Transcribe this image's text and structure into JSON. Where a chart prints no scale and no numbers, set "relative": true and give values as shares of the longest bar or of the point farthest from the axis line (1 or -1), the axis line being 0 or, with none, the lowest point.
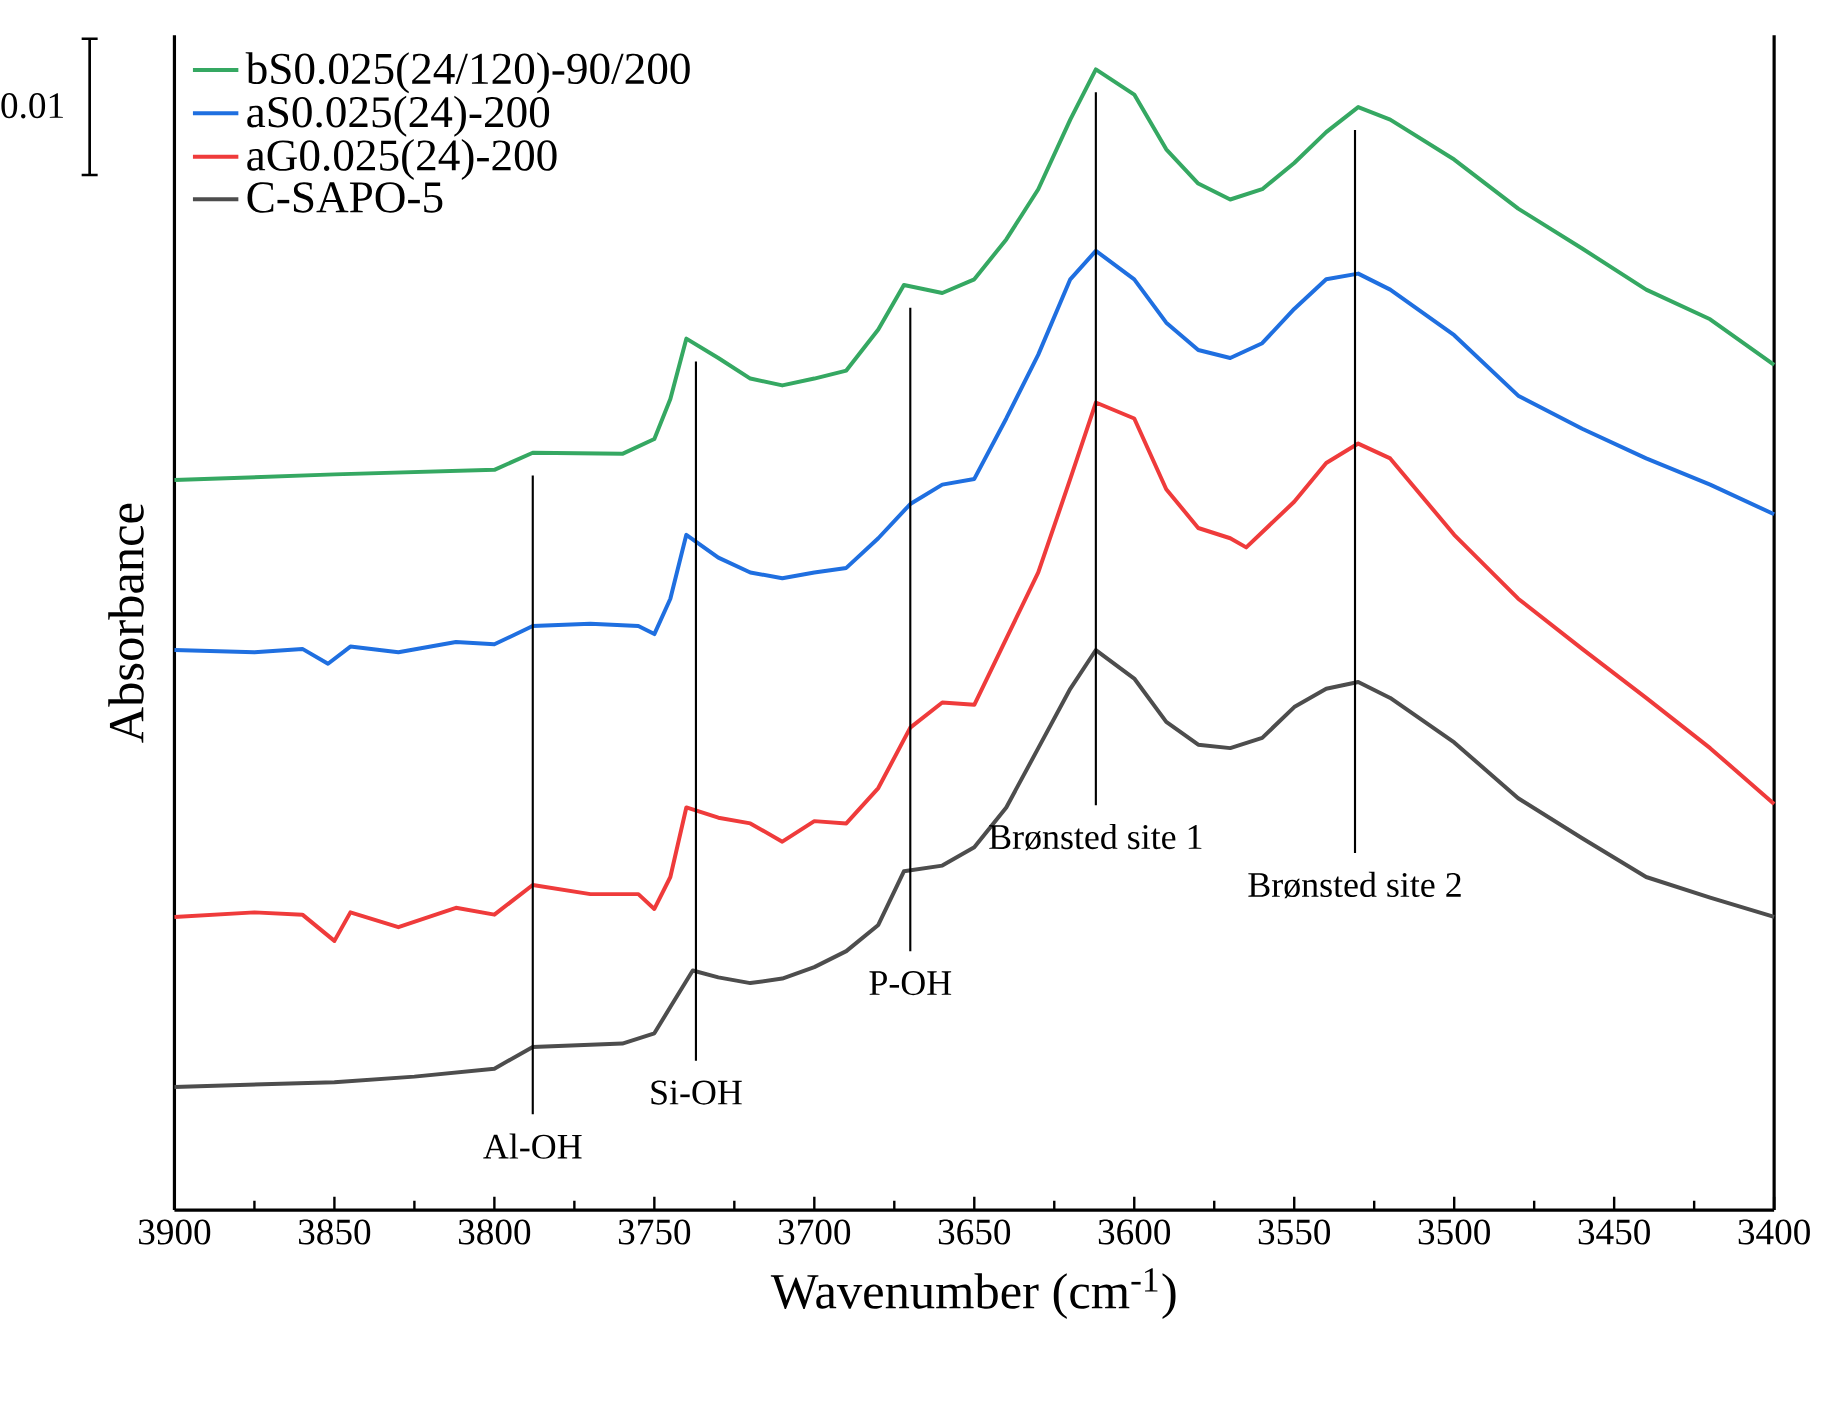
{
  "chart_data": {
    "type": "line",
    "relative": true,
    "xlabel": "Wavenumber (cm$^{-1}$)",
    "ylabel": "Absorbance",
    "xlim": [
      3900,
      3400
    ],
    "xticks": [
      3900,
      3850,
      3800,
      3750,
      3700,
      3650,
      3600,
      3550,
      3500,
      3450,
      3400
    ],
    "legend": "top left",
    "series": [
      {
        "name": "bS0.025(24/120)-90/200",
        "color": "#35a862",
        "x": [
          3900,
          3850,
          3800,
          3788,
          3760,
          3750,
          3745,
          3740,
          3730,
          3720,
          3710,
          3700,
          3690,
          3680,
          3672,
          3660,
          3650,
          3640,
          3630,
          3620,
          3612,
          3600,
          3590,
          3580,
          3570,
          3560,
          3550,
          3540,
          3530,
          3520,
          3500,
          3480,
          3460,
          3440,
          3420,
          3400
        ],
        "values": [
          0.64,
          0.645,
          0.649,
          0.664,
          0.663,
          0.676,
          0.711,
          0.764,
          0.747,
          0.729,
          0.723,
          0.729,
          0.736,
          0.772,
          0.811,
          0.804,
          0.816,
          0.851,
          0.895,
          0.956,
          1.0,
          0.978,
          0.93,
          0.9,
          0.886,
          0.895,
          0.918,
          0.945,
          0.967,
          0.956,
          0.921,
          0.878,
          0.843,
          0.807,
          0.781,
          0.741
        ]
      },
      {
        "name": "aS0.025(24)-200",
        "color": "#1f6fe0",
        "x": [
          3900,
          3875,
          3860,
          3852,
          3845,
          3830,
          3812,
          3800,
          3788,
          3770,
          3755,
          3750,
          3745,
          3740,
          3730,
          3720,
          3710,
          3700,
          3690,
          3680,
          3670,
          3660,
          3650,
          3640,
          3630,
          3620,
          3612,
          3600,
          3590,
          3580,
          3570,
          3560,
          3550,
          3540,
          3530,
          3520,
          3500,
          3480,
          3460,
          3440,
          3420,
          3400
        ],
        "values": [
          0.491,
          0.489,
          0.492,
          0.479,
          0.494,
          0.489,
          0.498,
          0.496,
          0.512,
          0.514,
          0.512,
          0.505,
          0.536,
          0.592,
          0.572,
          0.559,
          0.554,
          0.559,
          0.563,
          0.589,
          0.619,
          0.636,
          0.641,
          0.694,
          0.75,
          0.816,
          0.841,
          0.816,
          0.778,
          0.754,
          0.747,
          0.76,
          0.79,
          0.816,
          0.821,
          0.807,
          0.767,
          0.714,
          0.685,
          0.659,
          0.636,
          0.61
        ]
      },
      {
        "name": "aG0.025(24)-200",
        "color": "#ef3b3b",
        "x": [
          3900,
          3875,
          3860,
          3850,
          3845,
          3830,
          3812,
          3800,
          3788,
          3770,
          3755,
          3750,
          3745,
          3740,
          3730,
          3720,
          3710,
          3700,
          3690,
          3680,
          3670,
          3660,
          3650,
          3640,
          3630,
          3620,
          3612,
          3600,
          3590,
          3580,
          3570,
          3565,
          3550,
          3540,
          3530,
          3520,
          3500,
          3480,
          3460,
          3440,
          3420,
          3400
        ],
        "values": [
          0.257,
          0.261,
          0.259,
          0.236,
          0.261,
          0.248,
          0.265,
          0.259,
          0.285,
          0.277,
          0.277,
          0.264,
          0.292,
          0.353,
          0.344,
          0.339,
          0.323,
          0.341,
          0.339,
          0.37,
          0.423,
          0.445,
          0.443,
          0.501,
          0.559,
          0.641,
          0.708,
          0.694,
          0.632,
          0.598,
          0.589,
          0.581,
          0.621,
          0.655,
          0.672,
          0.659,
          0.592,
          0.536,
          0.492,
          0.449,
          0.405,
          0.356
        ]
      },
      {
        "name": "C-SAPO-5",
        "color": "#4d4d4d",
        "x": [
          3900,
          3850,
          3825,
          3800,
          3788,
          3760,
          3750,
          3745,
          3738,
          3730,
          3720,
          3710,
          3700,
          3690,
          3680,
          3672,
          3660,
          3650,
          3640,
          3630,
          3620,
          3612,
          3600,
          3590,
          3580,
          3570,
          3560,
          3550,
          3540,
          3530,
          3520,
          3500,
          3480,
          3460,
          3440,
          3420,
          3400
        ],
        "values": [
          0.108,
          0.112,
          0.117,
          0.124,
          0.143,
          0.146,
          0.155,
          0.178,
          0.21,
          0.204,
          0.199,
          0.203,
          0.213,
          0.227,
          0.25,
          0.297,
          0.302,
          0.318,
          0.353,
          0.405,
          0.457,
          0.491,
          0.466,
          0.428,
          0.408,
          0.405,
          0.414,
          0.441,
          0.457,
          0.463,
          0.449,
          0.41,
          0.361,
          0.326,
          0.292,
          0.274,
          0.257
        ]
      }
    ],
    "ref_lines": [
      {
        "axis": "x",
        "value": 3788,
        "label": "Al-OH"
      },
      {
        "axis": "x",
        "value": 3737,
        "label": "Si-OH"
      },
      {
        "axis": "x",
        "value": 3670,
        "label": "P-OH"
      },
      {
        "axis": "x",
        "value": 3612,
        "label": "Brønsted site 1"
      },
      {
        "axis": "x",
        "value": 3531,
        "label": "Brønsted site 2"
      }
    ],
    "annotations": [
      "0.01"
    ]
  }
}
